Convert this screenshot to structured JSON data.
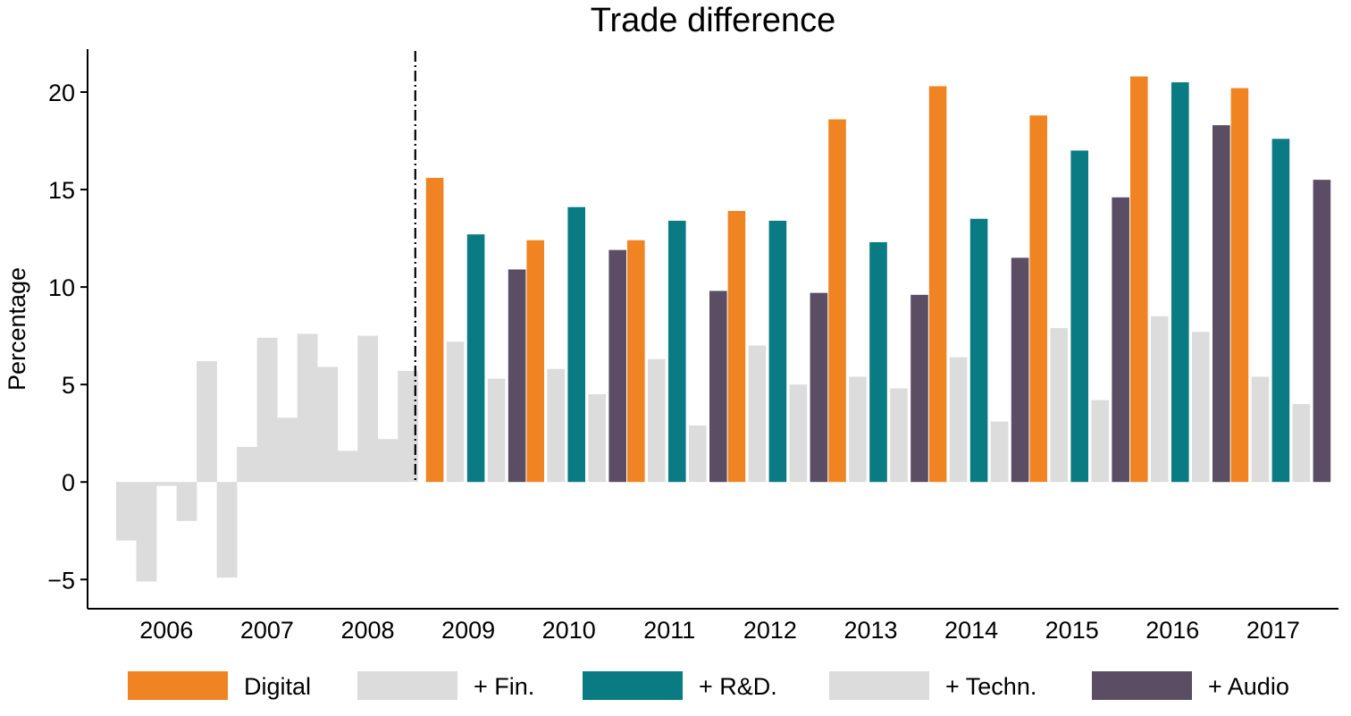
{
  "chart_data": {
    "type": "bar",
    "title": "Trade difference",
    "xlabel": "",
    "ylabel": "Percentage",
    "ylim": [
      -6.5,
      22.2
    ],
    "yticks": [
      -5,
      0,
      5,
      10,
      15,
      20
    ],
    "ytick_labels": [
      "−5",
      "0",
      "5",
      "10",
      "15",
      "20"
    ],
    "categories": [
      "2006",
      "2007",
      "2008",
      "2009",
      "2010",
      "2011",
      "2012",
      "2013",
      "2014",
      "2015",
      "2016",
      "2017"
    ],
    "pre_period_bar_color": "#dcdcdc",
    "pre_period_bars": [
      [
        -3.0,
        -5.1,
        -0.2,
        -2.0,
        6.2
      ],
      [
        -4.9,
        1.8,
        7.4,
        3.3,
        7.6
      ],
      [
        5.9,
        1.6,
        7.5,
        2.2,
        5.7
      ]
    ],
    "event_line_after_category": "2008",
    "series": [
      {
        "name": "Digital",
        "color": "#f08422",
        "values": [
          null,
          null,
          null,
          15.6,
          12.4,
          12.4,
          13.9,
          18.6,
          20.3,
          18.8,
          20.8,
          20.2
        ]
      },
      {
        "name": "+ Fin.",
        "color": "#dcdcdc",
        "values": [
          null,
          null,
          null,
          7.2,
          5.8,
          6.3,
          7.0,
          5.4,
          6.4,
          7.9,
          8.5,
          5.4
        ]
      },
      {
        "name": "+ R&D.",
        "color": "#0a7b82",
        "values": [
          null,
          null,
          null,
          12.7,
          14.1,
          13.4,
          13.4,
          12.3,
          13.5,
          17.0,
          20.5,
          17.6
        ]
      },
      {
        "name": "+ Techn.",
        "color": "#dcdcdc",
        "values": [
          null,
          null,
          null,
          5.3,
          4.5,
          2.9,
          5.0,
          4.8,
          3.1,
          4.2,
          7.7,
          4.0
        ]
      },
      {
        "name": "+ Audio",
        "color": "#5a4d64",
        "values": [
          null,
          null,
          null,
          10.9,
          11.9,
          9.8,
          9.7,
          9.6,
          11.5,
          14.6,
          18.3,
          15.5
        ]
      }
    ],
    "legend_position": "bottom",
    "grid": false
  }
}
